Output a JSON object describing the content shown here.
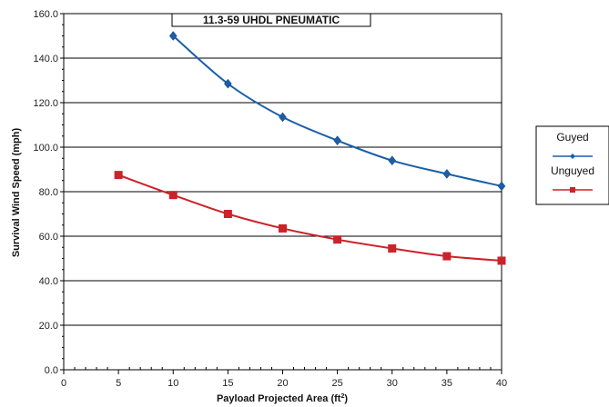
{
  "chart_data": {
    "type": "line",
    "title": "11.3-59 UHDL PNEUMATIC",
    "xlabel": "Payload Projected Area (ft",
    "xlabel_superscript": "2",
    "xlabel_suffix": ")",
    "ylabel": "Survival Wind Speed (mph)",
    "xlim": [
      0,
      40
    ],
    "ylim": [
      0,
      160
    ],
    "x_ticks": [
      0,
      5,
      10,
      15,
      20,
      25,
      30,
      35,
      40
    ],
    "x_tick_labels": [
      "0",
      "5",
      "10",
      "15",
      "20",
      "25",
      "30",
      "35",
      "40"
    ],
    "y_ticks": [
      0,
      20,
      40,
      60,
      80,
      100,
      120,
      140,
      160
    ],
    "y_tick_labels": [
      "0.0",
      "20.0",
      "40.0",
      "60.0",
      "80.0",
      "100.0",
      "120.0",
      "140.0",
      "160.0"
    ],
    "grid": "horizontal",
    "legend_position": "right",
    "series": [
      {
        "name": "Guyed",
        "color": "#1a5fa8",
        "marker": "diamond",
        "x": [
          10,
          15,
          20,
          25,
          30,
          35,
          40
        ],
        "values": [
          150.0,
          128.5,
          113.5,
          103.0,
          94.0,
          88.0,
          82.5
        ]
      },
      {
        "name": "Unguyed",
        "color": "#cc2229",
        "marker": "square",
        "x": [
          5,
          10,
          15,
          20,
          25,
          30,
          35,
          40
        ],
        "values": [
          87.5,
          78.5,
          70.0,
          63.5,
          58.5,
          54.5,
          51.0,
          49.0
        ]
      }
    ]
  }
}
